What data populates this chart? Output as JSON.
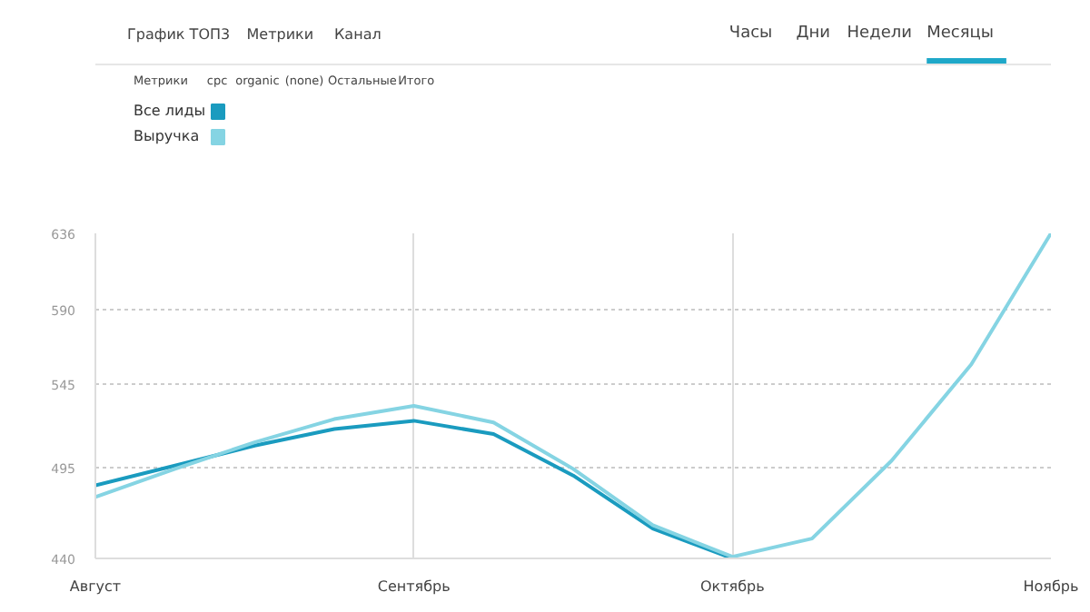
{
  "chart_data": {
    "type": "line",
    "title": "График ТОП3",
    "annotations": [
      "Метрики",
      "Канал",
      "Часы",
      "Дни",
      "Недели",
      "Месяцы",
      "Метрики",
      "cpc",
      "organic",
      "(none)",
      "Остальные",
      "Итого"
    ],
    "categories": [
      "Август",
      null,
      null,
      null,
      "Сентябрь",
      null,
      null,
      null,
      "Октябрь",
      null,
      null,
      null,
      "Ноябрь"
    ],
    "ylim": [
      440,
      636
    ],
    "yticks": [
      440,
      495,
      545,
      590,
      636
    ],
    "series": [
      {
        "name": "Все лиды",
        "color": "#1a9bbf",
        "values": [
          484,
          496,
          508,
          518,
          523,
          515,
          490,
          458,
          440,
          null,
          null,
          null,
          null
        ]
      },
      {
        "name": "Выручка",
        "color": "#85d4e3",
        "values": [
          477,
          494,
          510,
          524,
          532,
          522,
          494,
          460,
          441,
          452,
          499,
          557,
          636
        ]
      }
    ],
    "grid": true,
    "legend": "top left",
    "marker": "none",
    "line_style": "solid"
  }
}
